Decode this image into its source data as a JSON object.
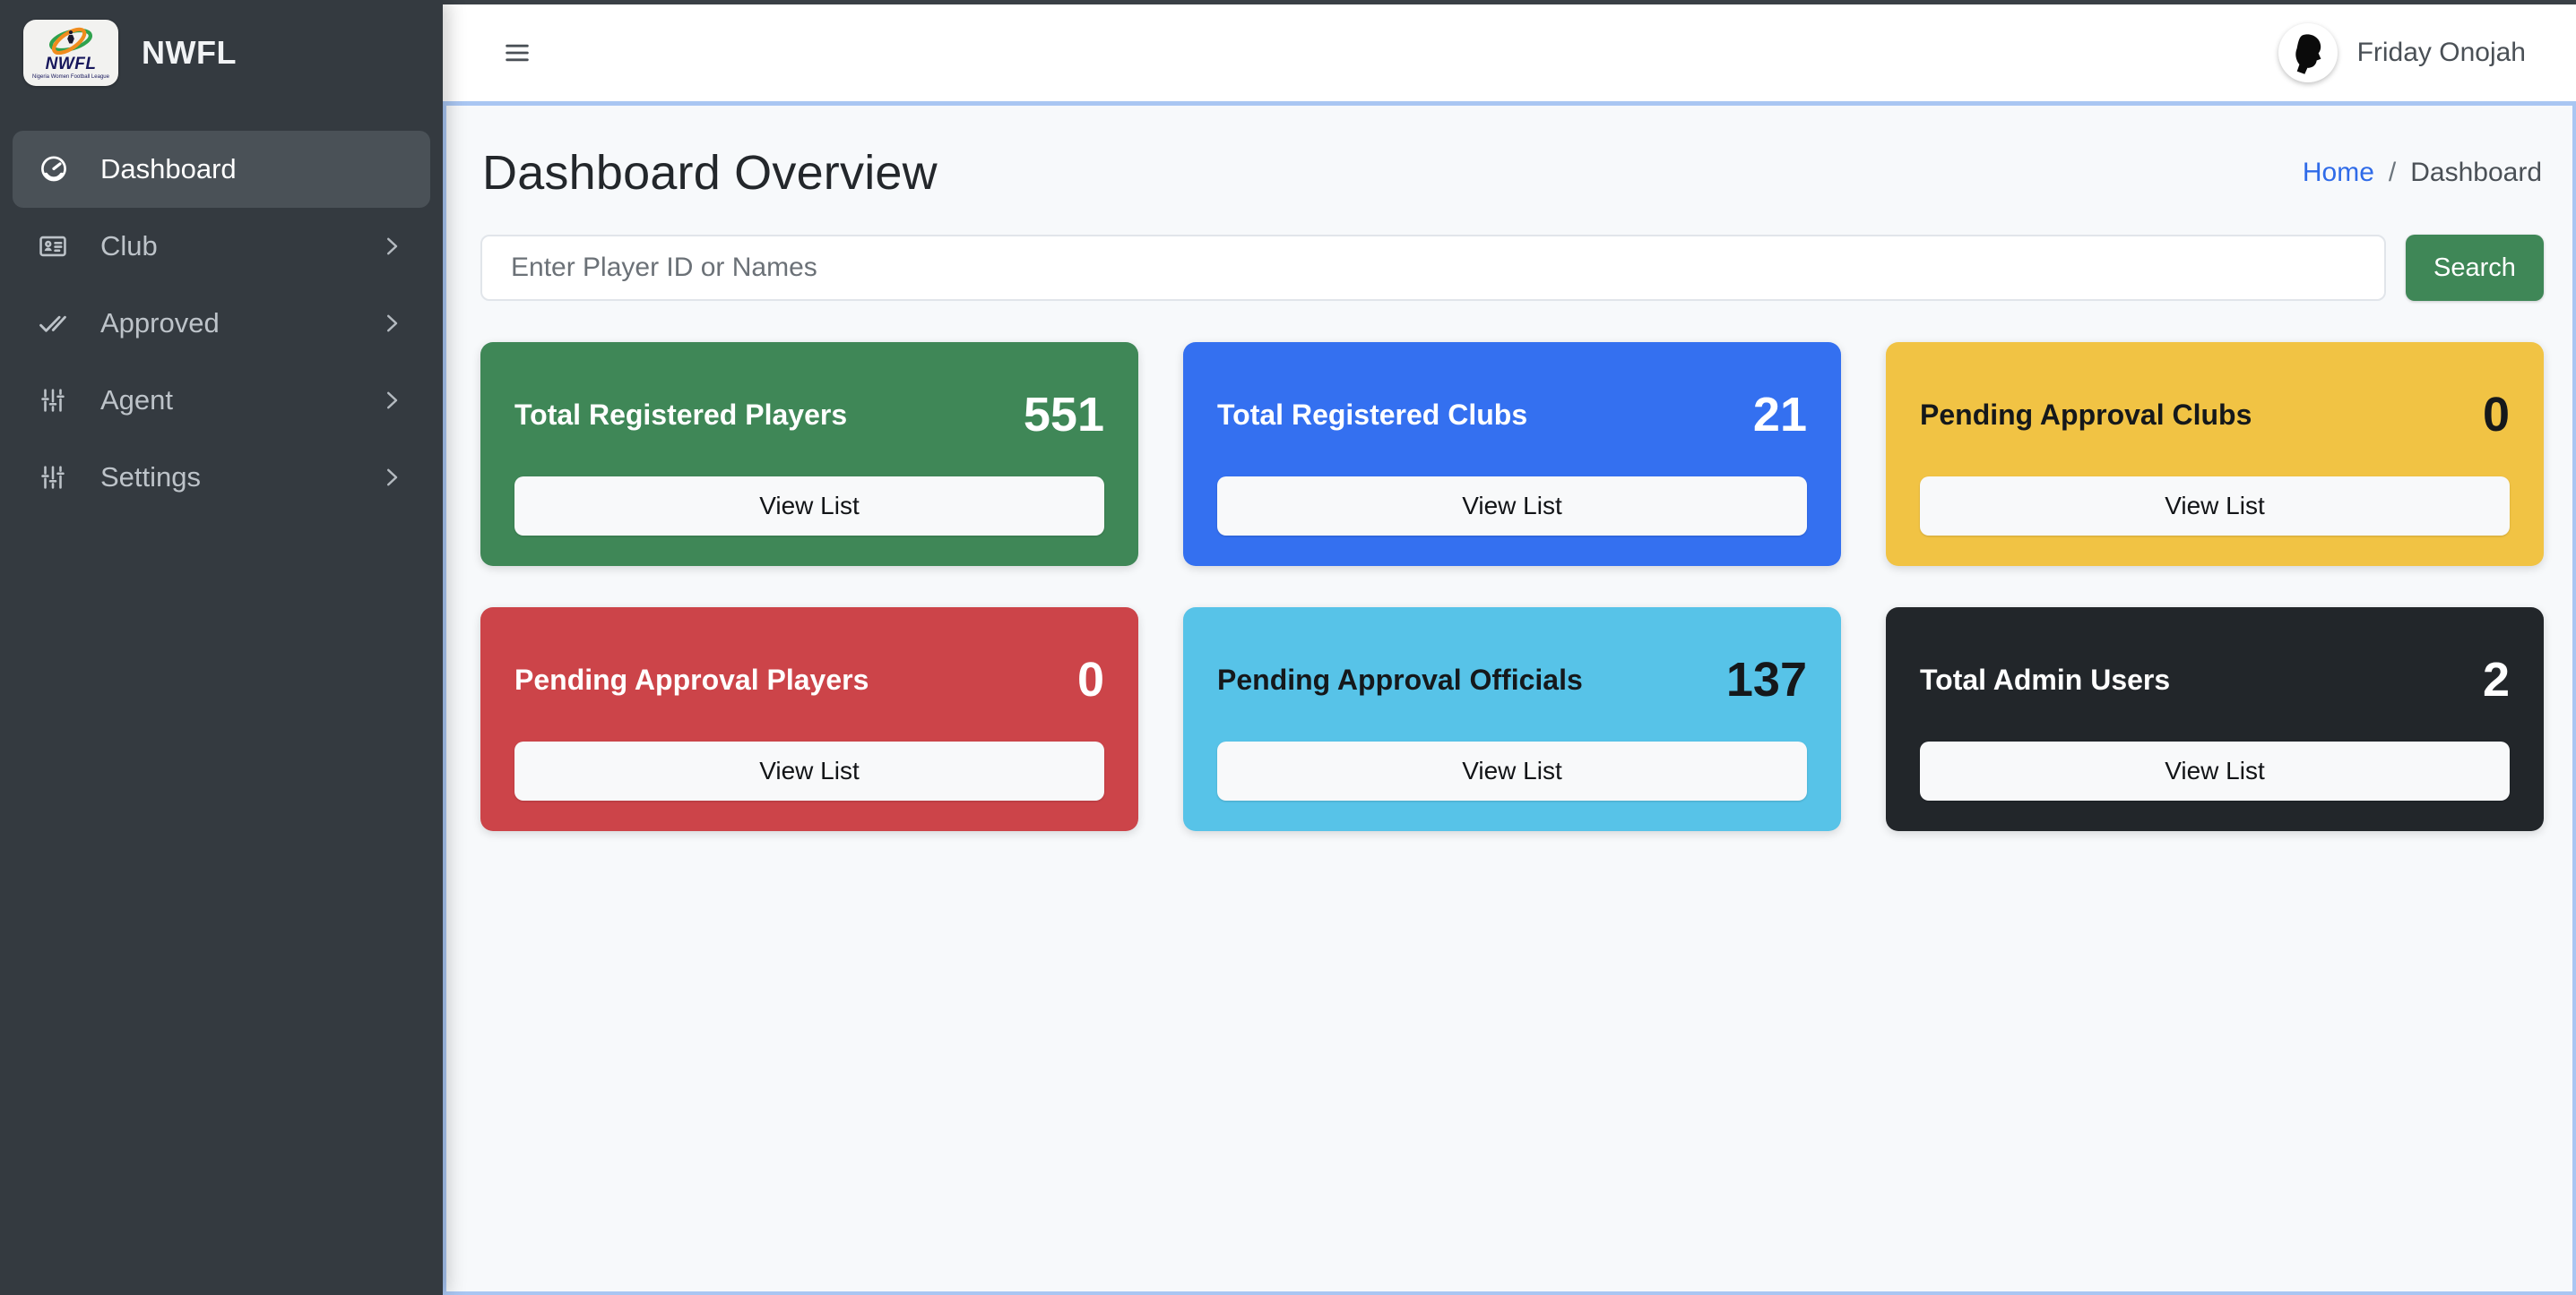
{
  "brand": {
    "name": "NWFL",
    "logo_text": "NWFL",
    "logo_tagline": "Nigeria Women Football League"
  },
  "topbar": {
    "user_name": "Friday Onojah"
  },
  "icons": {
    "menu_toggle": "hamburger-icon",
    "user_avatar": "user-silhouette-icon",
    "submenu": "chevron-right-icon",
    "brand_logo": "nwfl-logo-icon"
  },
  "sidebar": {
    "items": [
      {
        "label": "Dashboard",
        "icon": "gauge-icon",
        "active": true,
        "has_submenu": false
      },
      {
        "label": "Club",
        "icon": "id-card-icon",
        "active": false,
        "has_submenu": true
      },
      {
        "label": "Approved",
        "icon": "double-check-icon",
        "active": false,
        "has_submenu": true
      },
      {
        "label": "Agent",
        "icon": "sliders-icon",
        "active": false,
        "has_submenu": true
      },
      {
        "label": "Settings",
        "icon": "sliders-icon",
        "active": false,
        "has_submenu": true
      }
    ]
  },
  "page": {
    "title": "Dashboard Overview",
    "breadcrumb": {
      "home": "Home",
      "separator": "/",
      "current": "Dashboard"
    }
  },
  "search": {
    "placeholder": "Enter Player ID or Names",
    "button_label": "Search"
  },
  "cards": {
    "button_label": "View List",
    "items": [
      {
        "title": "Total Registered Players",
        "value": "551",
        "bg": "#3f8757",
        "text_theme": "light"
      },
      {
        "title": "Total Registered Clubs",
        "value": "21",
        "bg": "#3470f0",
        "text_theme": "light"
      },
      {
        "title": "Pending Approval Clubs",
        "value": "0",
        "bg": "#f1c344",
        "text_theme": "dark"
      },
      {
        "title": "Pending Approval Players",
        "value": "0",
        "bg": "#cc4449",
        "text_theme": "light"
      },
      {
        "title": "Pending Approval Officials",
        "value": "137",
        "bg": "#57c3e8",
        "text_theme": "dark"
      },
      {
        "title": "Total Admin Users",
        "value": "2",
        "bg": "#22262a",
        "text_theme": "light"
      }
    ]
  },
  "colors": {
    "sidebar_bg": "#343a40",
    "sidebar_active_bg": "#4a5157",
    "topbar_bg": "#ffffff",
    "content_bg": "#f7f9fb",
    "content_border": "#a9c6f2",
    "accent_green": "#3f8757",
    "breadcrumb_link": "#2f6be8",
    "page_top_strip": "#3a4046"
  }
}
